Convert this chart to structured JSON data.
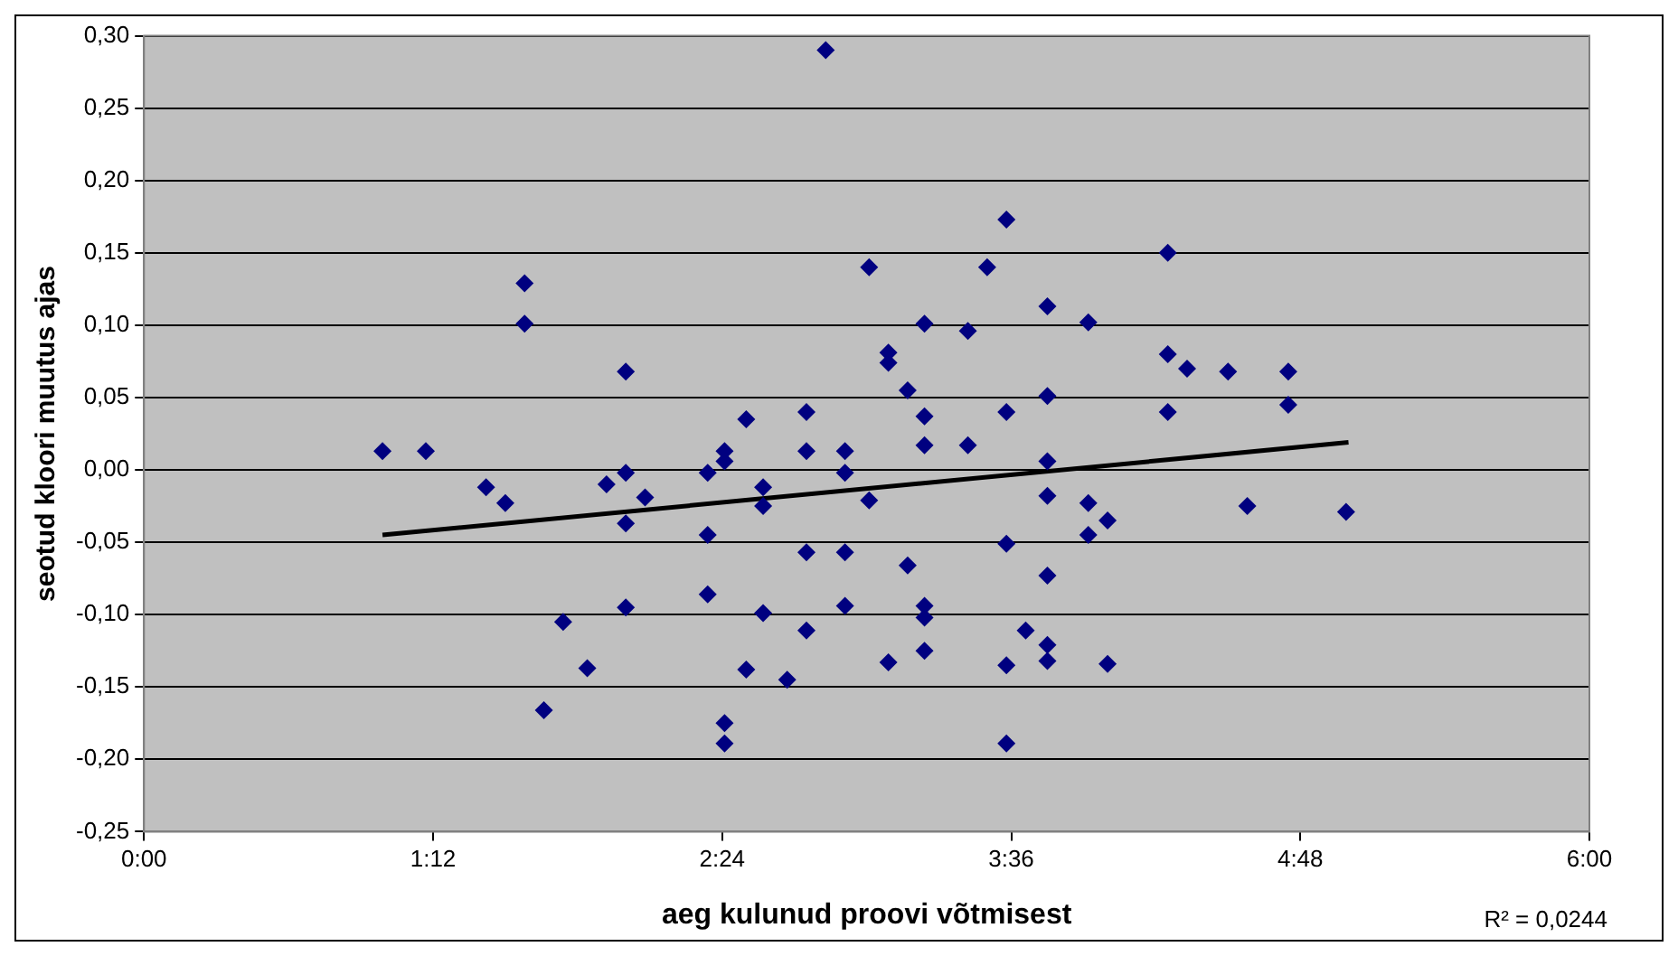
{
  "chart_data": {
    "type": "scatter",
    "xlabel": "aeg kulunud proovi võtmisest",
    "ylabel": "seotud kloori muutus ajas",
    "annotations": [
      "R² = 0,0244"
    ],
    "xlim": [
      0,
      6
    ],
    "xticks": [
      {
        "value": 0,
        "label": "0:00"
      },
      {
        "value": 1.2,
        "label": "1:12"
      },
      {
        "value": 2.4,
        "label": "2:24"
      },
      {
        "value": 3.6,
        "label": "3:36"
      },
      {
        "value": 4.8,
        "label": "4:48"
      },
      {
        "value": 6,
        "label": "6:00"
      }
    ],
    "ylim": [
      -0.25,
      0.3
    ],
    "yticks": [
      {
        "value": -0.25,
        "label": "-0,25"
      },
      {
        "value": -0.2,
        "label": "-0,20"
      },
      {
        "value": -0.15,
        "label": "-0,15"
      },
      {
        "value": -0.1,
        "label": "-0,10"
      },
      {
        "value": -0.05,
        "label": "-0,05"
      },
      {
        "value": 0,
        "label": "0,00"
      },
      {
        "value": 0.05,
        "label": "0,05"
      },
      {
        "value": 0.1,
        "label": "0,10"
      },
      {
        "value": 0.15,
        "label": "0,15"
      },
      {
        "value": 0.2,
        "label": "0,20"
      },
      {
        "value": 0.25,
        "label": "0,25"
      },
      {
        "value": 0.3,
        "label": "0,30"
      }
    ],
    "grid": "y",
    "legend": false,
    "series": [
      {
        "color": "#000080",
        "marker": "diamond",
        "x": [
          0.99,
          1.17,
          1.42,
          1.5,
          1.58,
          1.58,
          1.66,
          1.74,
          1.84,
          1.92,
          2.0,
          2.0,
          2.0,
          2.0,
          2.08,
          2.34,
          2.34,
          2.34,
          2.41,
          2.41,
          2.41,
          2.41,
          2.5,
          2.5,
          2.57,
          2.57,
          2.57,
          2.67,
          2.75,
          2.75,
          2.75,
          2.75,
          2.83,
          2.91,
          2.91,
          2.91,
          2.91,
          3.01,
          3.01,
          3.09,
          3.09,
          3.09,
          3.17,
          3.17,
          3.24,
          3.24,
          3.24,
          3.24,
          3.24,
          3.24,
          3.42,
          3.42,
          3.5,
          3.58,
          3.58,
          3.58,
          3.58,
          3.58,
          3.66,
          3.75,
          3.75,
          3.75,
          3.75,
          3.75,
          3.75,
          3.75,
          3.92,
          3.92,
          3.92,
          4.0,
          4.0,
          4.25,
          4.25,
          4.25,
          4.33,
          4.5,
          4.58,
          4.75,
          4.75,
          4.99
        ],
        "values": [
          0.013,
          0.013,
          -0.012,
          -0.023,
          0.129,
          0.101,
          -0.166,
          -0.105,
          -0.137,
          -0.01,
          0.068,
          -0.002,
          -0.037,
          -0.095,
          -0.019,
          -0.002,
          -0.045,
          -0.086,
          0.013,
          0.006,
          -0.175,
          -0.189,
          0.035,
          -0.138,
          -0.012,
          -0.025,
          -0.099,
          -0.145,
          0.04,
          0.013,
          -0.057,
          -0.111,
          0.29,
          0.013,
          -0.002,
          -0.057,
          -0.094,
          0.14,
          -0.021,
          0.081,
          0.074,
          -0.133,
          0.055,
          -0.066,
          0.101,
          0.037,
          0.017,
          -0.094,
          -0.102,
          -0.125,
          0.096,
          0.017,
          0.14,
          0.173,
          0.04,
          -0.051,
          -0.135,
          -0.189,
          -0.111,
          0.113,
          0.051,
          0.006,
          -0.018,
          -0.073,
          -0.121,
          -0.132,
          0.102,
          -0.023,
          -0.045,
          -0.035,
          -0.134,
          0.15,
          0.08,
          0.04,
          0.07,
          0.068,
          -0.025,
          0.068,
          0.045,
          -0.029
        ]
      },
      {
        "type": "line",
        "color": "#000000",
        "marker": "none",
        "line_style": "solid",
        "x": [
          0.99,
          5.0
        ],
        "values": [
          -0.045,
          0.019
        ]
      }
    ]
  }
}
